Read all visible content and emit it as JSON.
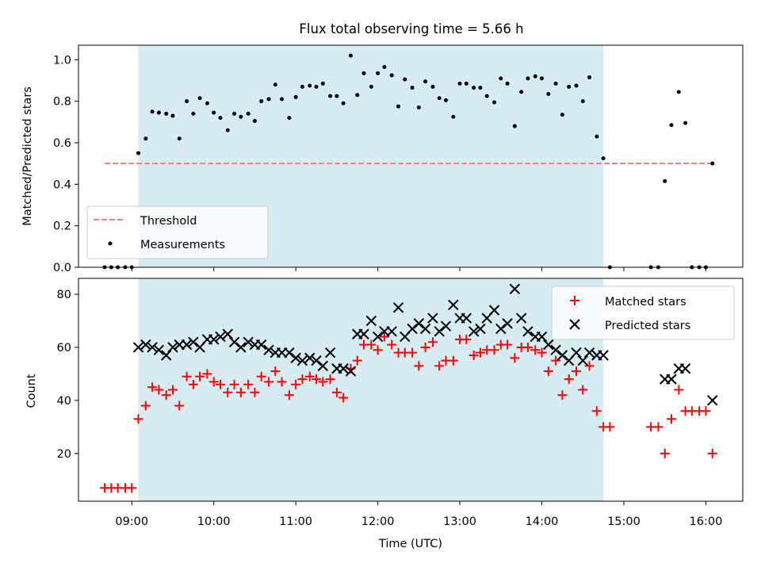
{
  "chart_data": [
    {
      "type": "scatter",
      "title": "Flux total observing time = 5.66 h",
      "xlabel": "",
      "ylabel": "Matched/Predicted stars",
      "x_unit": "hours UTC",
      "xlim": [
        8.35,
        16.45
      ],
      "ylim": [
        0.0,
        1.07
      ],
      "yticks": [
        0.0,
        0.2,
        0.4,
        0.6,
        0.8,
        1.0
      ],
      "ytick_labels": [
        "0.0",
        "0.2",
        "0.4",
        "0.6",
        "0.8",
        "1.0"
      ],
      "grid": false,
      "legend_position": "bottom-left",
      "observing_window": {
        "start": 9.08,
        "end": 14.75,
        "color": "#add8e6"
      },
      "threshold": {
        "name": "Threshold",
        "value": 0.5,
        "x_range": [
          8.67,
          16.08
        ],
        "color": "#f08080",
        "style": "dashed"
      },
      "series": [
        {
          "name": "Measurements",
          "marker": "dot",
          "color": "#000000",
          "x": [
            8.67,
            8.75,
            8.83,
            8.92,
            9.0,
            9.08,
            9.17,
            9.25,
            9.33,
            9.42,
            9.5,
            9.58,
            9.67,
            9.75,
            9.83,
            9.92,
            10.0,
            10.08,
            10.17,
            10.25,
            10.33,
            10.42,
            10.5,
            10.58,
            10.67,
            10.75,
            10.83,
            10.92,
            11.0,
            11.08,
            11.17,
            11.25,
            11.33,
            11.42,
            11.5,
            11.58,
            11.67,
            11.75,
            11.83,
            11.92,
            12.0,
            12.08,
            12.17,
            12.25,
            12.33,
            12.42,
            12.5,
            12.58,
            12.67,
            12.75,
            12.83,
            12.92,
            13.0,
            13.08,
            13.17,
            13.25,
            13.33,
            13.42,
            13.5,
            13.58,
            13.67,
            13.75,
            13.83,
            13.92,
            14.0,
            14.08,
            14.17,
            14.25,
            14.33,
            14.42,
            14.5,
            14.58,
            14.67,
            14.75,
            14.83,
            15.33,
            15.42,
            15.5,
            15.58,
            15.67,
            15.75,
            15.83,
            15.92,
            16.0,
            16.08
          ],
          "y": [
            0.0,
            0.0,
            0.0,
            0.0,
            0.0,
            0.55,
            0.62,
            0.75,
            0.745,
            0.74,
            0.73,
            0.62,
            0.8,
            0.74,
            0.815,
            0.79,
            0.745,
            0.72,
            0.66,
            0.74,
            0.725,
            0.74,
            0.705,
            0.8,
            0.81,
            0.88,
            0.81,
            0.72,
            0.82,
            0.87,
            0.875,
            0.87,
            0.885,
            0.825,
            0.825,
            0.79,
            1.02,
            0.83,
            0.935,
            0.87,
            0.935,
            0.965,
            0.925,
            0.775,
            0.905,
            0.865,
            0.77,
            0.895,
            0.87,
            0.815,
            0.805,
            0.725,
            0.885,
            0.885,
            0.865,
            0.865,
            0.825,
            0.795,
            0.91,
            0.885,
            0.68,
            0.845,
            0.91,
            0.92,
            0.91,
            0.835,
            0.885,
            0.735,
            0.87,
            0.875,
            0.8,
            0.915,
            0.63,
            0.525,
            0.0,
            0.0,
            0.0,
            0.415,
            0.685,
            0.845,
            0.695,
            0.0,
            0.0,
            0.0,
            0.5
          ]
        }
      ]
    },
    {
      "type": "scatter",
      "title": "",
      "xlabel": "Time (UTC)",
      "ylabel": "Count",
      "x_unit": "hours UTC",
      "xlim": [
        8.35,
        16.45
      ],
      "ylim": [
        2,
        86
      ],
      "yticks": [
        20,
        40,
        60,
        80
      ],
      "ytick_labels": [
        "20",
        "40",
        "60",
        "80"
      ],
      "xticks": [
        9,
        10,
        11,
        12,
        13,
        14,
        15,
        16
      ],
      "xtick_labels": [
        "09:00",
        "10:00",
        "11:00",
        "12:00",
        "13:00",
        "14:00",
        "15:00",
        "16:00"
      ],
      "grid": false,
      "legend_position": "top-right",
      "observing_window": {
        "start": 9.08,
        "end": 14.75,
        "color": "#add8e6"
      },
      "series": [
        {
          "name": "Matched stars",
          "marker": "plus",
          "color": "#ff0000",
          "x": [
            8.67,
            8.75,
            8.83,
            8.92,
            9.0,
            9.08,
            9.17,
            9.25,
            9.33,
            9.42,
            9.5,
            9.58,
            9.67,
            9.75,
            9.83,
            9.92,
            10.0,
            10.08,
            10.17,
            10.25,
            10.33,
            10.42,
            10.5,
            10.58,
            10.67,
            10.75,
            10.83,
            10.92,
            11.0,
            11.08,
            11.17,
            11.25,
            11.33,
            11.42,
            11.5,
            11.58,
            11.67,
            11.75,
            11.83,
            11.92,
            12.0,
            12.08,
            12.17,
            12.25,
            12.33,
            12.42,
            12.5,
            12.58,
            12.67,
            12.75,
            12.83,
            12.92,
            13.0,
            13.08,
            13.17,
            13.25,
            13.33,
            13.42,
            13.5,
            13.58,
            13.67,
            13.75,
            13.83,
            13.92,
            14.0,
            14.08,
            14.17,
            14.25,
            14.33,
            14.42,
            14.5,
            14.58,
            14.67,
            14.75,
            14.83,
            15.33,
            15.42,
            15.5,
            15.58,
            15.67,
            15.75,
            15.83,
            15.92,
            16.0,
            16.08
          ],
          "y": [
            7,
            7,
            7,
            7,
            7,
            33,
            38,
            45,
            44,
            42,
            44,
            38,
            49,
            46,
            49,
            50,
            47,
            46,
            43,
            46,
            43,
            46,
            43,
            49,
            47,
            51,
            47,
            42,
            46,
            48,
            49,
            48,
            47,
            48,
            43,
            41,
            52,
            55,
            61,
            61,
            59,
            64,
            61,
            58,
            58,
            58,
            53,
            60,
            62,
            53,
            55,
            55,
            63,
            63,
            57,
            58,
            59,
            59,
            61,
            61,
            56,
            60,
            60,
            59,
            58,
            51,
            55,
            42,
            48,
            51,
            44,
            53,
            36,
            30,
            30,
            30,
            30,
            20,
            33,
            44,
            36,
            36,
            36,
            36,
            20
          ]
        },
        {
          "name": "Predicted stars",
          "marker": "x",
          "color": "#000000",
          "x": [
            9.08,
            9.17,
            9.25,
            9.33,
            9.42,
            9.5,
            9.58,
            9.67,
            9.75,
            9.83,
            9.92,
            10.0,
            10.08,
            10.17,
            10.25,
            10.33,
            10.42,
            10.5,
            10.58,
            10.67,
            10.75,
            10.83,
            10.92,
            11.0,
            11.08,
            11.17,
            11.25,
            11.33,
            11.42,
            11.5,
            11.58,
            11.67,
            11.75,
            11.83,
            11.92,
            12.0,
            12.08,
            12.17,
            12.25,
            12.33,
            12.42,
            12.5,
            12.58,
            12.67,
            12.75,
            12.83,
            12.92,
            13.0,
            13.08,
            13.17,
            13.25,
            13.33,
            13.42,
            13.5,
            13.58,
            13.67,
            13.75,
            13.83,
            13.92,
            14.0,
            14.08,
            14.17,
            14.25,
            14.33,
            14.42,
            14.5,
            14.58,
            14.67,
            14.75,
            15.5,
            15.58,
            15.67,
            15.75,
            16.08
          ],
          "y": [
            60,
            61,
            60,
            59,
            57,
            60,
            61,
            61,
            62,
            60,
            63,
            63,
            64,
            65,
            62,
            60,
            62,
            61,
            61,
            59,
            58,
            58,
            58,
            56,
            55,
            56,
            55,
            53,
            58,
            52,
            52,
            51,
            65,
            65,
            70,
            64,
            66,
            66,
            75,
            64,
            67,
            69,
            67,
            71,
            66,
            68,
            76,
            71,
            71,
            66,
            67,
            71,
            74,
            67,
            69,
            82,
            71,
            66,
            64,
            64,
            61,
            59,
            57,
            55,
            58,
            55,
            58,
            57,
            57,
            48,
            48,
            52,
            52,
            40
          ]
        }
      ]
    }
  ]
}
